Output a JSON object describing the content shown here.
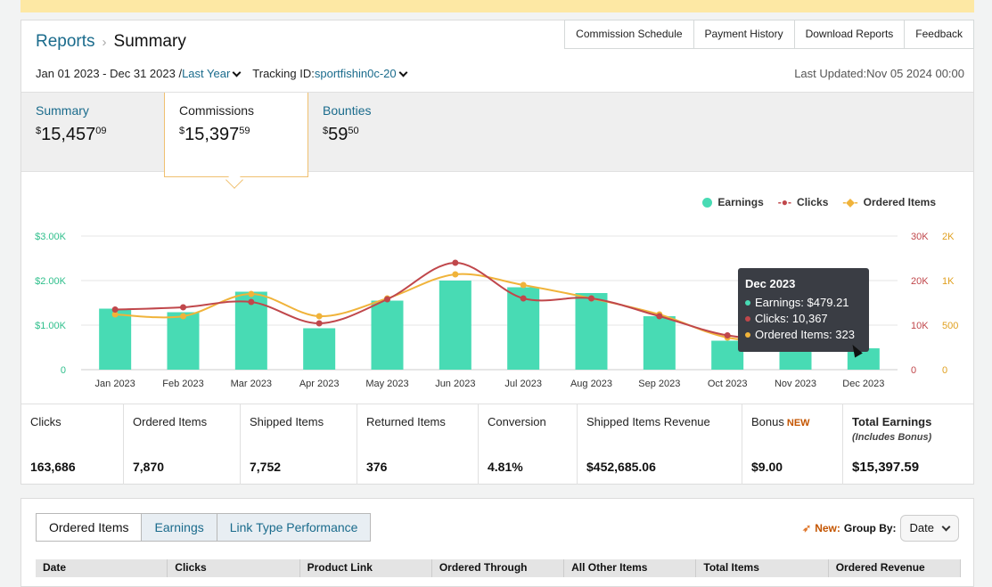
{
  "header": {
    "breadcrumb_root": "Reports",
    "breadcrumb_current": "Summary",
    "actions": [
      "Commission Schedule",
      "Payment History",
      "Download Reports",
      "Feedback"
    ],
    "date_range": "Jan 01 2023 - Dec 31 2023 /",
    "date_preset": "Last Year",
    "tracking_label": "Tracking ID:",
    "tracking_id": "sportfishin0c-20",
    "last_updated": "Last Updated:Nov 05 2024 00:00"
  },
  "tabs": [
    {
      "title": "Summary",
      "dollar": "$",
      "whole": "15,457",
      "cents": "09"
    },
    {
      "title": "Commissions",
      "dollar": "$",
      "whole": "15,397",
      "cents": "59"
    },
    {
      "title": "Bounties",
      "dollar": "$",
      "whole": "59",
      "cents": "50"
    }
  ],
  "legend": {
    "earnings": "Earnings",
    "clicks": "Clicks",
    "ordered": "Ordered Items"
  },
  "colors": {
    "earnings": "#48dbb4",
    "clicks": "#c0474b",
    "ordered": "#f0b33a",
    "link": "#1a6b8c"
  },
  "chart_data": {
    "type": "bar",
    "categories": [
      "Jan 2023",
      "Feb 2023",
      "Mar 2023",
      "Apr 2023",
      "May 2023",
      "Jun 2023",
      "Jul 2023",
      "Aug 2023",
      "Sep 2023",
      "Oct 2023",
      "Nov 2023",
      "Dec 2023"
    ],
    "series": [
      {
        "name": "Earnings",
        "axis": "left",
        "type": "bar",
        "values": [
          1370,
          1290,
          1750,
          930,
          1550,
          2000,
          1850,
          1720,
          1200,
          650,
          560,
          479.21
        ]
      },
      {
        "name": "Clicks",
        "axis": "right1",
        "type": "line",
        "values": [
          13500,
          14000,
          15200,
          10400,
          15800,
          24000,
          16000,
          16000,
          12000,
          7700,
          7000,
          10367
        ]
      },
      {
        "name": "Ordered Items",
        "axis": "right2",
        "type": "line",
        "values": [
          620,
          600,
          850,
          600,
          800,
          1070,
          950,
          800,
          620,
          360,
          320,
          323
        ]
      }
    ],
    "y_left": {
      "ticks": [
        "0",
        "$1.00K",
        "$2.00K",
        "$3.00K"
      ],
      "range": [
        0,
        3000
      ]
    },
    "y_right1": {
      "ticks": [
        "0",
        "10K",
        "20K",
        "30K"
      ],
      "range": [
        0,
        30000
      ]
    },
    "y_right2": {
      "ticks": [
        "0",
        "500",
        "1K",
        "2K"
      ],
      "range": [
        0,
        1500
      ]
    },
    "grid": true,
    "legend_position": "top-right"
  },
  "tooltip": {
    "title": "Dec 2023",
    "earnings": "Earnings: $479.21",
    "clicks": "Clicks: 10,367",
    "ordered": "Ordered Items: 323"
  },
  "stats": [
    {
      "label": "Clicks",
      "value": "163,686"
    },
    {
      "label": "Ordered Items",
      "value": "7,870"
    },
    {
      "label": "Shipped Items",
      "value": "7,752"
    },
    {
      "label": "Returned Items",
      "value": "376"
    },
    {
      "label": "Conversion",
      "value": "4.81%"
    },
    {
      "label": "Shipped Items Revenue",
      "value": "$452,685.06"
    },
    {
      "label": "Bonus",
      "badge": "NEW",
      "value": "$9.00"
    },
    {
      "label": "Total Earnings",
      "sub": "(Includes Bonus)",
      "value": "$15,397.59"
    }
  ],
  "bottom": {
    "tabs": [
      "Ordered Items",
      "Earnings",
      "Link Type Performance"
    ],
    "new_label": "New:",
    "group_by_label": "Group By:",
    "group_by_value": "Date",
    "columns": [
      "Date",
      "Clicks",
      "Product Link",
      "Ordered Through",
      "All Other Items",
      "Total Items",
      "Ordered Revenue"
    ]
  }
}
